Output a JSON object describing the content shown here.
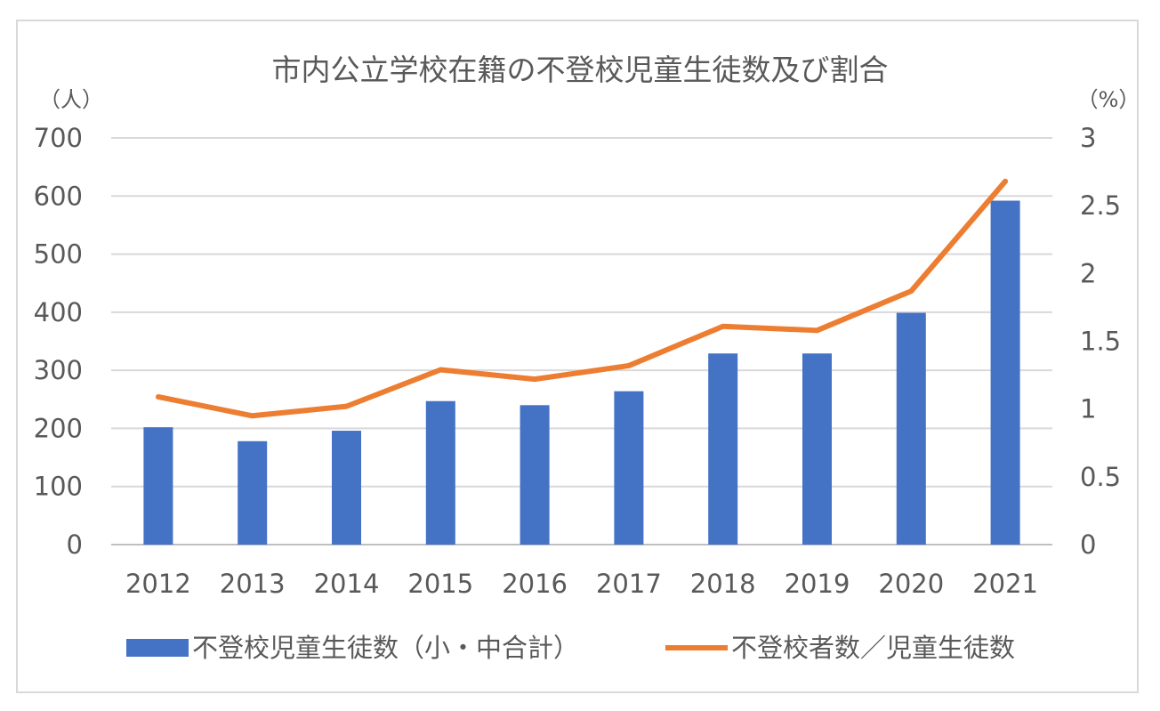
{
  "chart_data": {
    "type": "bar",
    "title": "市内公立学校在籍の不登校児童生徒数及び割合",
    "y_unit_left": "（人）",
    "y_unit_right": "（%）",
    "categories": [
      "2012",
      "2013",
      "2014",
      "2015",
      "2016",
      "2017",
      "2018",
      "2019",
      "2020",
      "2021"
    ],
    "ylim_left": [
      0,
      700
    ],
    "yticks_left": [
      "0",
      "100",
      "200",
      "300",
      "400",
      "500",
      "600",
      "700"
    ],
    "ylim_right": [
      0,
      3
    ],
    "yticks_right": [
      "0",
      "0.5",
      "1",
      "1.5",
      "2",
      "2.5",
      "3"
    ],
    "grid": true,
    "legend_position": "bottom",
    "series": [
      {
        "name": "不登校児童生徒数（小・中合計）",
        "type": "bar",
        "axis": "left",
        "color": "#4472c4",
        "values": [
          202,
          178,
          196,
          247,
          240,
          264,
          329,
          329,
          399,
          592
        ]
      },
      {
        "name": "不登校者数／児童生徒数",
        "type": "line",
        "axis": "right",
        "color": "#ed7d31",
        "values": [
          1.09,
          0.95,
          1.02,
          1.29,
          1.22,
          1.32,
          1.61,
          1.58,
          1.87,
          2.68
        ]
      }
    ]
  }
}
